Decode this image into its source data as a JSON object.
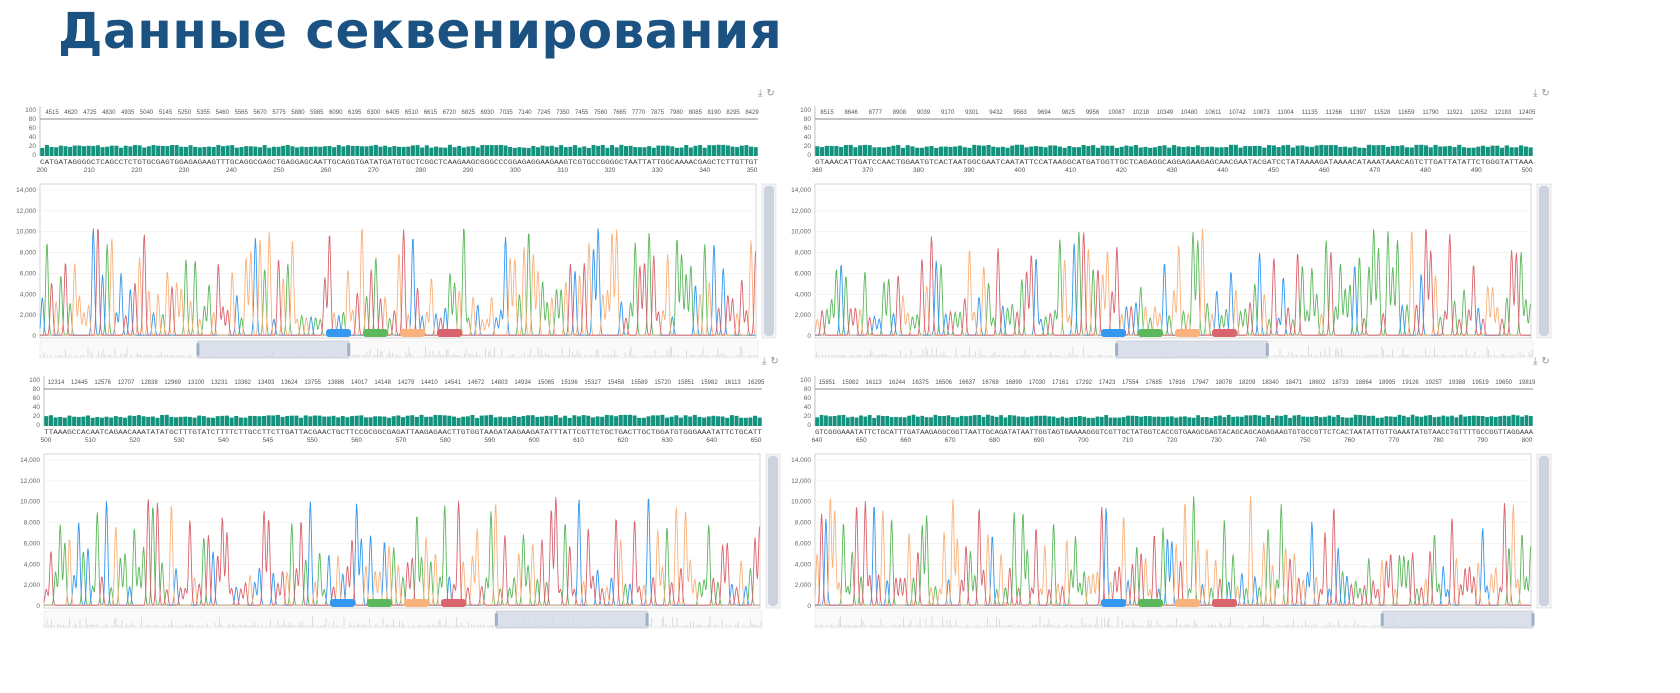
{
  "title": "Данные секвенирования",
  "icons": {
    "download": "⤓",
    "refresh": "↻"
  },
  "colors": {
    "quality_bar": "#13937e",
    "A": "#5cb85c",
    "C": "#3498f0",
    "G": "#f9b27c",
    "T": "#d9646e",
    "brush": "#d3dae6"
  },
  "chart_data": {
    "type": "line",
    "title": "Sanger sequencing chromatograms with per-base quality",
    "quality_axis": [
      "100",
      "80",
      "60",
      "40",
      "20",
      "0"
    ],
    "quality_ylim": [
      0,
      100
    ],
    "quality_level": 22,
    "trace_axis": [
      "14,000",
      "12,000",
      "10,000",
      "8,000",
      "6,000",
      "4,000",
      "2,000",
      "0"
    ],
    "trace_ylim": [
      0,
      14000
    ],
    "legend": [
      "A",
      "C",
      "G",
      "T"
    ],
    "panels": [
      {
        "scan_ticks": [
          "4515",
          "4620",
          "4725",
          "4830",
          "4935",
          "5040",
          "5145",
          "5250",
          "5355",
          "5460",
          "5565",
          "5670",
          "5775",
          "5880",
          "5985",
          "6090",
          "6195",
          "6300",
          "6405",
          "6510",
          "6615",
          "6720",
          "6825",
          "6930",
          "7035",
          "7140",
          "7245",
          "7350",
          "7455",
          "7560",
          "7665",
          "7770",
          "7875",
          "7980",
          "8085",
          "8190",
          "8295",
          "8429"
        ],
        "sequence": "CATGATAGGGGCTCAGCCTCTGTGCGAGTGGAGAGAAGTTTGCAGGCGAGCTGAGGAGCAATTGCAGGTGATATGATGTGCTCGGCTCAAGAAGCGGGCCCGGAGAGGAAGAAGTCGTGCCGGGGCTAATTATTGGCAAAACGAGCTCTTGTTGT",
        "positions": [
          "200",
          "210",
          "220",
          "230",
          "240",
          "250",
          "260",
          "270",
          "280",
          "290",
          "300",
          "310",
          "320",
          "330",
          "340",
          "350"
        ],
        "view_window": [
          0.22,
          0.43
        ]
      },
      {
        "scan_ticks": [
          "8515",
          "8646",
          "8777",
          "8908",
          "9039",
          "9170",
          "9301",
          "9432",
          "9563",
          "9694",
          "9825",
          "9956",
          "10087",
          "10218",
          "10349",
          "10480",
          "10611",
          "10742",
          "10873",
          "11004",
          "11135",
          "11266",
          "11397",
          "11528",
          "11659",
          "11790",
          "11921",
          "12052",
          "12183",
          "12405"
        ],
        "sequence": "GTAAACATTGATCCAACTGGAATGTCACTAATGGCGAATCAATATTCCATAAGGCATGATGGTTGCTCAGAGGCAGGAGAAGAGCAACGAATACGATCCTATAAAAGATAAAACATAAATAAACAGTCTTGATTATATTCTGGGTATTAAA",
        "positions": [
          "360",
          "370",
          "380",
          "390",
          "400",
          "410",
          "420",
          "430",
          "440",
          "450",
          "460",
          "470",
          "480",
          "490",
          "500"
        ],
        "view_window": [
          0.42,
          0.63
        ]
      },
      {
        "scan_ticks": [
          "12314",
          "12445",
          "12576",
          "12707",
          "12838",
          "12969",
          "13100",
          "13231",
          "13362",
          "13493",
          "13624",
          "13755",
          "13886",
          "14017",
          "14148",
          "14279",
          "14410",
          "14541",
          "14672",
          "14803",
          "14934",
          "15065",
          "15196",
          "15327",
          "15458",
          "15589",
          "15720",
          "15851",
          "15982",
          "16113",
          "16295"
        ],
        "sequence": "TTAAAGCCACAATCAGAACAAATATATGCTTTGTATCTTTTCTTGCCTTCTTGATTACGAACTGCTTCCGCGGCGAGATTAAGAGAACTTGTGGTAAGATAAGAAGATATTTATTCGTTCTGCTGACTTGCTGGATGTGGGAAATATTCTGCATT",
        "positions": [
          "500",
          "510",
          "520",
          "530",
          "540",
          "545",
          "550",
          "560",
          "570",
          "580",
          "590",
          "600",
          "610",
          "620",
          "630",
          "640",
          "650"
        ],
        "view_window": [
          0.63,
          0.84
        ]
      },
      {
        "scan_ticks": [
          "15851",
          "15982",
          "16113",
          "16244",
          "16375",
          "16506",
          "16637",
          "16768",
          "16899",
          "17030",
          "17161",
          "17292",
          "17423",
          "17554",
          "17685",
          "17816",
          "17947",
          "18078",
          "18209",
          "18340",
          "18471",
          "18602",
          "18733",
          "18864",
          "18995",
          "19126",
          "19257",
          "19388",
          "19519",
          "19650",
          "19819"
        ],
        "sequence": "GTCGGGAAATATTCTGCATTTGATAAGAGGCGGTTAATTGCAGATATAATTGGTAGTGAAAAGGGTCGTTGCTATGGTCACCGTGAAGCGAGTACAGCAGCAGAGAAGTGTGCCGTTCTCACTAATATTGTTGAAATATGTAACCTGTTTTGCCGGTTAGGAAA",
        "positions": [
          "640",
          "650",
          "660",
          "670",
          "680",
          "690",
          "700",
          "710",
          "720",
          "730",
          "740",
          "750",
          "760",
          "770",
          "780",
          "790",
          "800"
        ],
        "view_window": [
          0.79,
          1.0
        ]
      }
    ]
  }
}
